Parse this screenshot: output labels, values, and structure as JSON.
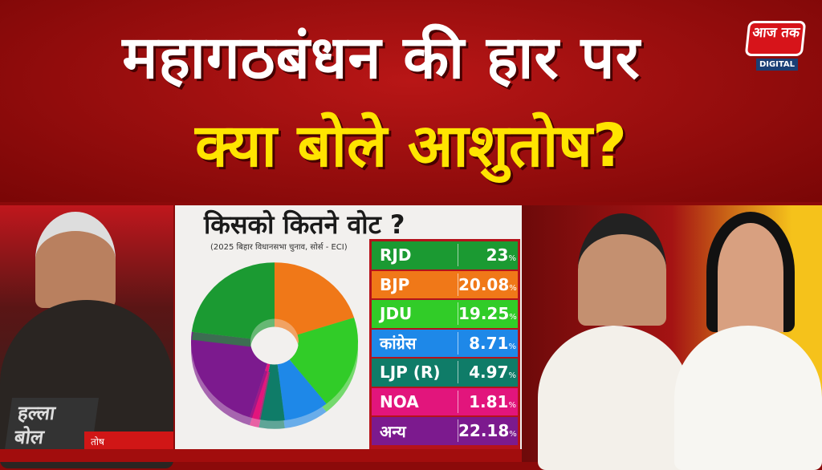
{
  "headline": {
    "line1": "महागठबंधन की हार पर",
    "line2": "क्या बोले आशुतोष?"
  },
  "logo": {
    "text": "आज तक",
    "badge": "DIGITAL"
  },
  "show": {
    "name": "हल्ला बोल",
    "name_strip": "तोष"
  },
  "chart_data": {
    "type": "pie",
    "title": "किसको कितने वोट ?",
    "subtitle": "(2025 बिहार विधानसभा चुनाव, सोर्स - ECI)",
    "unit": "%",
    "series": [
      {
        "party": "RJD",
        "value": 23,
        "label": "23",
        "color": "#1b9a32"
      },
      {
        "party": "BJP",
        "value": 20.08,
        "label": "20.08",
        "color": "#f07818"
      },
      {
        "party": "JDU",
        "value": 19.25,
        "label": "19.25",
        "color": "#31cc28"
      },
      {
        "party": "कांग्रेस",
        "value": 8.71,
        "label": "8.71",
        "color": "#1e88e8"
      },
      {
        "party": "LJP (R)",
        "value": 4.97,
        "label": "4.97",
        "color": "#0f7c68"
      },
      {
        "party": "NOA",
        "value": 1.81,
        "label": "1.81",
        "color": "#e2157c"
      },
      {
        "party": "अन्य",
        "value": 22.18,
        "label": "22.18",
        "color": "#7c1a8e"
      }
    ],
    "pie_order": [
      "BJP",
      "JDU",
      "कांग्रेस",
      "LJP (R)",
      "NOA",
      "अन्य",
      "RJD"
    ]
  }
}
